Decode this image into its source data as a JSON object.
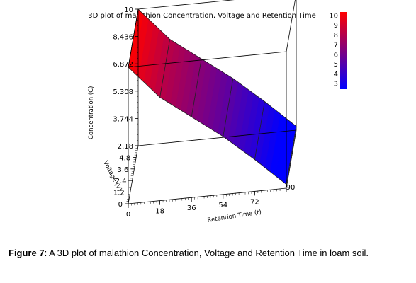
{
  "chart_data": {
    "type": "surface",
    "title": "3D plot of malathion Concentration, Voltage and Retention Time",
    "zlabel": "Concentration (C)",
    "ylabel": "Voltage (V)",
    "xlabel": "Retention Time (t)",
    "z_ticks": [
      "10",
      "8.436",
      "6.872",
      "5.308",
      "3.744",
      "2.18"
    ],
    "y_ticks": [
      "6",
      "4.8",
      "3.6",
      "2.4",
      "1.2",
      "0"
    ],
    "x_ticks": [
      "0",
      "18",
      "36",
      "54",
      "72",
      "90"
    ],
    "xlim": [
      0,
      90
    ],
    "ylim": [
      0,
      6
    ],
    "zlim": [
      2.18,
      10
    ],
    "x": [
      0,
      18,
      36,
      54,
      72,
      90
    ],
    "z": [
      10,
      8.1,
      6.8,
      5.5,
      4.0,
      2.4
    ],
    "colorbar": {
      "ticks": [
        "10",
        "9",
        "8",
        "7",
        "6",
        "5",
        "4",
        "3"
      ],
      "range": [
        3,
        10
      ],
      "high_color": "#ff0000",
      "low_color": "#0000ff"
    }
  },
  "caption": {
    "label": "Figure 7",
    "text": ": A 3D plot of malathion Concentration, Voltage and Retention Time in loam soil."
  }
}
